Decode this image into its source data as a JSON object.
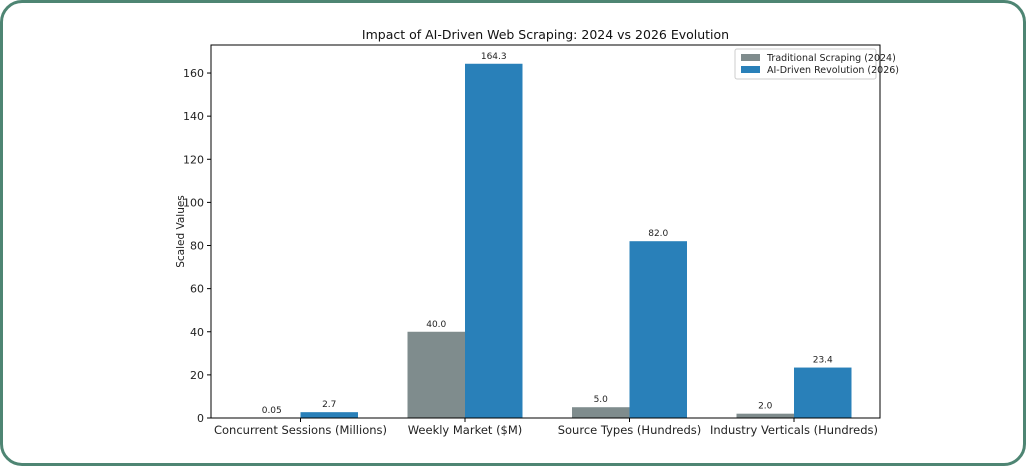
{
  "chart_data": {
    "type": "bar",
    "title": "Impact of AI-Driven Web Scraping: 2024 vs 2026 Evolution",
    "xlabel": "",
    "ylabel": "Scaled Values",
    "ylim": [
      0,
      173
    ],
    "yticks": [
      0,
      20,
      40,
      60,
      80,
      100,
      120,
      140,
      160
    ],
    "grid": false,
    "legend_position": "top-right",
    "categories": [
      "Concurrent Sessions (Millions)",
      "Weekly Market ($M)",
      "Source Types (Hundreds)",
      "Industry Verticals (Hundreds)"
    ],
    "series": [
      {
        "name": "Traditional Scraping (2024)",
        "color": "#7f8c8d",
        "values": [
          0.05,
          40.0,
          5.0,
          2.0
        ],
        "labels": [
          "0.05",
          "40.0",
          "5.0",
          "2.0"
        ]
      },
      {
        "name": "AI-Driven Revolution (2026)",
        "color": "#2980b9",
        "values": [
          2.7,
          164.3,
          82.0,
          23.4
        ],
        "labels": [
          "2.7",
          "164.3",
          "82.0",
          "23.4"
        ]
      }
    ]
  }
}
